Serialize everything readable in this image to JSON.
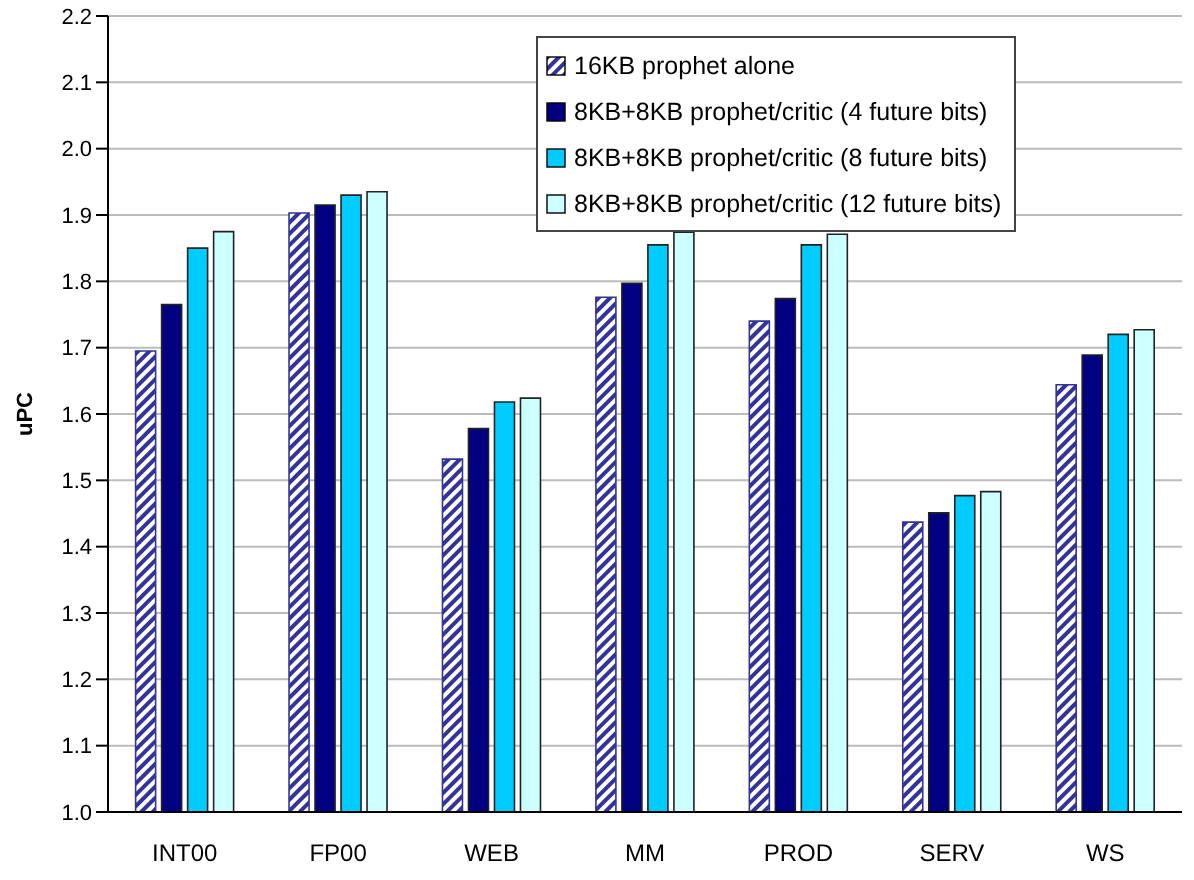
{
  "chart_data": {
    "type": "bar",
    "ylabel": "uPC",
    "categories": [
      "INT00",
      "FP00",
      "WEB",
      "MM",
      "PROD",
      "SERV",
      "WS"
    ],
    "series": [
      {
        "name": "16KB prophet alone",
        "color": "#333399",
        "values": [
          1.695,
          1.903,
          1.532,
          1.776,
          1.74,
          1.437,
          1.644
        ]
      },
      {
        "name": "8KB+8KB prophet/critic (4 future bits)",
        "color": "#000080",
        "values": [
          1.765,
          1.915,
          1.578,
          1.797,
          1.774,
          1.451,
          1.689
        ]
      },
      {
        "name": "8KB+8KB prophet/critic (8 future bits)",
        "color": "#00ccff",
        "values": [
          1.85,
          1.93,
          1.618,
          1.855,
          1.855,
          1.477,
          1.72
        ]
      },
      {
        "name": "8KB+8KB prophet/critic (12 future bits)",
        "color": "#ccffff",
        "values": [
          1.875,
          1.935,
          1.624,
          1.874,
          1.871,
          1.483,
          1.727
        ]
      }
    ],
    "ylim": [
      1.0,
      2.2
    ],
    "yticks": [
      {
        "value": 1.0,
        "label": "1.0"
      },
      {
        "value": 1.1,
        "label": "1.1"
      },
      {
        "value": 1.2,
        "label": "1.2"
      },
      {
        "value": 1.3,
        "label": "1.3"
      },
      {
        "value": 1.4,
        "label": "1.4"
      },
      {
        "value": 1.5,
        "label": "1.5"
      },
      {
        "value": 1.6,
        "label": "1.6"
      },
      {
        "value": 1.7,
        "label": "1.7"
      },
      {
        "value": 1.8,
        "label": "1.8"
      },
      {
        "value": 1.9,
        "label": "1.9"
      },
      {
        "value": 2.0,
        "label": "2.0"
      },
      {
        "value": 2.1,
        "label": "2.1"
      },
      {
        "value": 2.2,
        "label": "2.2"
      }
    ],
    "grid": "y",
    "legend": "top right"
  }
}
